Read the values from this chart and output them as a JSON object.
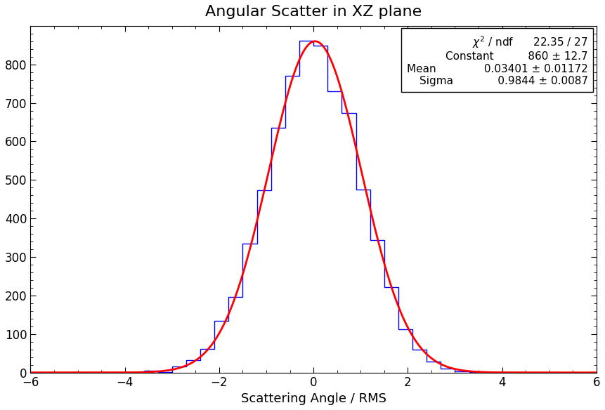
{
  "title": "Angular Scatter in XZ plane",
  "xlabel": "Scattering Angle / RMS",
  "xlim": [
    -6,
    6
  ],
  "ylim": [
    0,
    900
  ],
  "xticks": [
    -6,
    -4,
    -2,
    0,
    2,
    4,
    6
  ],
  "yticks": [
    0,
    100,
    200,
    300,
    400,
    500,
    600,
    700,
    800
  ],
  "hist_color": "#0000FF",
  "fit_color": "#FF0000",
  "fit_constant": 860.0,
  "fit_mean": 0.03401,
  "fit_sigma": 0.9844,
  "chi2": 22.35,
  "ndf": 27,
  "constant_err": 12.7,
  "mean_err": 0.01172,
  "sigma_err": 0.0087,
  "bin_width": 0.3,
  "title_fontsize": 16,
  "label_fontsize": 13,
  "tick_fontsize": 12,
  "stats_fontsize": 11,
  "background_color": "#ffffff"
}
